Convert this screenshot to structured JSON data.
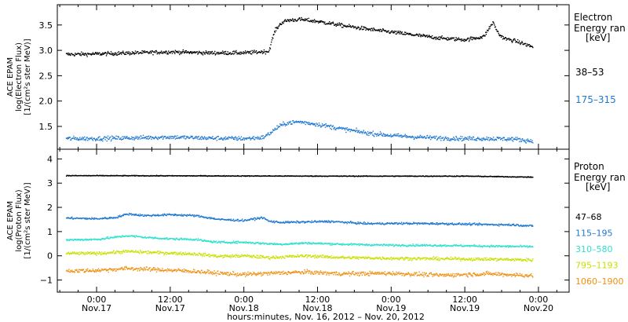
{
  "chart_data": [
    {
      "type": "scatter",
      "panel": "electron",
      "ylabel_lines": [
        "ACE EPAM",
        "log(Electron Flux)",
        "[1/(cm²s ster MeV)]"
      ],
      "ylim": [
        1.05,
        3.9
      ],
      "yticks": [
        1.5,
        2.0,
        2.5,
        3.0,
        3.5
      ],
      "ytick_labels": [
        "1.5",
        "2.0",
        "2.5",
        "3.0",
        "3.5"
      ],
      "legend_title_lines": [
        "Electron",
        "Energy ran",
        "[keV]"
      ],
      "series": [
        {
          "name": "38–53",
          "color": "#000000",
          "x": [
            -5,
            0,
            12,
            18,
            24,
            28,
            28.6,
            29,
            30,
            31,
            33,
            36,
            40,
            44,
            48,
            52,
            56,
            60,
            63,
            64.5,
            65.5,
            66.5,
            68,
            71
          ],
          "values": [
            2.93,
            2.94,
            2.98,
            2.96,
            2.96,
            2.99,
            3.25,
            3.4,
            3.55,
            3.6,
            3.62,
            3.58,
            3.5,
            3.43,
            3.37,
            3.31,
            3.25,
            3.22,
            3.28,
            3.56,
            3.32,
            3.24,
            3.2,
            3.08
          ]
        },
        {
          "name": "175–315",
          "color": "#1e78d2",
          "x": [
            -5,
            0,
            12,
            18,
            24,
            27,
            28,
            29.5,
            31,
            33,
            36,
            40,
            44,
            48,
            52,
            56,
            60,
            64,
            68,
            71
          ],
          "values": [
            1.27,
            1.27,
            1.3,
            1.28,
            1.27,
            1.29,
            1.36,
            1.5,
            1.58,
            1.6,
            1.55,
            1.46,
            1.38,
            1.33,
            1.3,
            1.28,
            1.27,
            1.27,
            1.26,
            1.22
          ]
        }
      ]
    },
    {
      "type": "scatter",
      "panel": "proton",
      "ylabel_lines": [
        "ACE EPAM",
        "log(Proton Flux)",
        "[1/(cm²s ster MeV)]"
      ],
      "ylim": [
        -1.5,
        4.4
      ],
      "yticks": [
        -1,
        0,
        1,
        2,
        3,
        4
      ],
      "ytick_labels": [
        "−1",
        "0",
        "1",
        "2",
        "3",
        "4"
      ],
      "legend_title_lines": [
        "Proton",
        "Energy ran",
        "[keV]"
      ],
      "series": [
        {
          "name": "47–68",
          "color": "#000000",
          "x": [
            -5,
            0,
            20,
            40,
            60,
            71
          ],
          "values": [
            3.33,
            3.33,
            3.32,
            3.31,
            3.31,
            3.27
          ]
        },
        {
          "name": "115–195",
          "color": "#1e78d2",
          "x": [
            -5,
            0,
            3,
            5,
            8,
            12,
            16,
            18,
            20,
            24,
            27,
            28,
            30,
            34,
            38,
            44,
            50,
            56,
            62,
            68,
            71
          ],
          "values": [
            1.58,
            1.55,
            1.6,
            1.75,
            1.68,
            1.72,
            1.68,
            1.6,
            1.52,
            1.48,
            1.6,
            1.45,
            1.4,
            1.42,
            1.44,
            1.35,
            1.36,
            1.35,
            1.32,
            1.3,
            1.25
          ]
        },
        {
          "name": "310–580",
          "color": "#2ee0d0",
          "x": [
            -5,
            0,
            5,
            8,
            12,
            16,
            18,
            20,
            24,
            28,
            30,
            34,
            40,
            48,
            56,
            64,
            71
          ],
          "values": [
            0.68,
            0.7,
            0.85,
            0.78,
            0.72,
            0.7,
            0.62,
            0.58,
            0.58,
            0.52,
            0.5,
            0.55,
            0.5,
            0.46,
            0.45,
            0.42,
            0.4
          ]
        },
        {
          "name": "795–1193",
          "color": "#c8e000",
          "x": [
            -5,
            0,
            5,
            10,
            16,
            20,
            24,
            28,
            34,
            40,
            48,
            56,
            64,
            71
          ],
          "values": [
            0.12,
            0.12,
            0.2,
            0.15,
            0.1,
            0.0,
            0.02,
            -0.05,
            0.02,
            -0.05,
            -0.08,
            -0.1,
            -0.12,
            -0.15
          ]
        },
        {
          "name": "1060–1900",
          "color": "#f09010",
          "x": [
            -5,
            0,
            5,
            10,
            16,
            20,
            24,
            28,
            34,
            40,
            48,
            56,
            64,
            71
          ],
          "values": [
            -0.6,
            -0.58,
            -0.5,
            -0.55,
            -0.62,
            -0.7,
            -0.75,
            -0.7,
            -0.65,
            -0.72,
            -0.7,
            -0.78,
            -0.72,
            -0.8
          ]
        }
      ]
    }
  ],
  "x_axis": {
    "xlim": [
      -6.4,
      77
    ],
    "tick_positions": [
      0,
      12,
      24,
      36,
      48,
      60,
      72
    ],
    "tick_labels_time": [
      "0:00",
      "12:00",
      "0:00",
      "12:00",
      "0:00",
      "12:00",
      "0:00"
    ],
    "tick_labels_date": [
      "Nov.17",
      "Nov.17",
      "Nov.18",
      "Nov.18",
      "Nov.19",
      "Nov.19",
      "Nov.20"
    ],
    "minor_tick_step": 3,
    "xlabel": "hours:minutes, Nov. 16, 2012 – Nov. 20, 2012"
  }
}
